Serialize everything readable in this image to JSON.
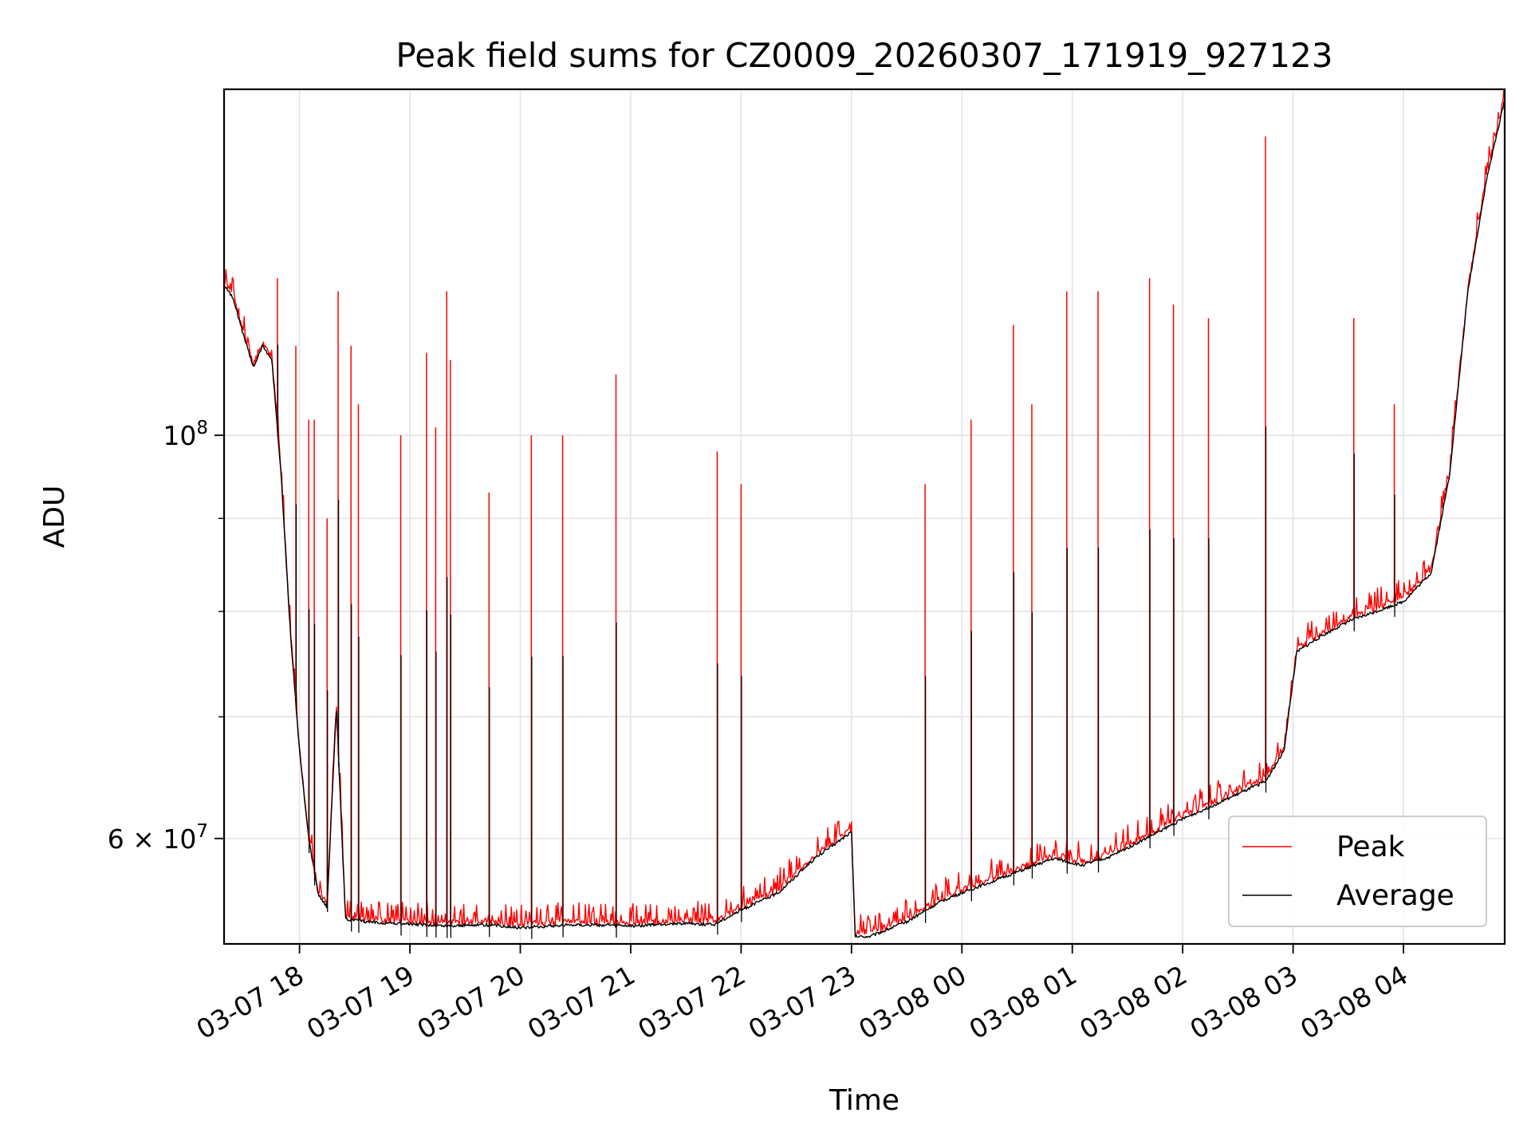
{
  "chart_data": {
    "type": "line",
    "title": "Peak field sums for CZ0009_20260307_171919_927123",
    "xlabel": "Time",
    "ylabel": "ADU",
    "yscale": "log",
    "ylim": [
      52500000,
      155000000
    ],
    "xlim": [
      "2026-03-07 17:19",
      "2026-03-08 04:55"
    ],
    "grid": true,
    "legend": {
      "placement": "lower right"
    },
    "x_ticks": [
      {
        "t": "2026-03-07 18:00",
        "label": "03-07 18"
      },
      {
        "t": "2026-03-07 19:00",
        "label": "03-07 19"
      },
      {
        "t": "2026-03-07 20:00",
        "label": "03-07 20"
      },
      {
        "t": "2026-03-07 21:00",
        "label": "03-07 21"
      },
      {
        "t": "2026-03-07 22:00",
        "label": "03-07 22"
      },
      {
        "t": "2026-03-07 23:00",
        "label": "03-07 23"
      },
      {
        "t": "2026-03-08 00:00",
        "label": "03-08 00"
      },
      {
        "t": "2026-03-08 01:00",
        "label": "03-08 01"
      },
      {
        "t": "2026-03-08 02:00",
        "label": "03-08 02"
      },
      {
        "t": "2026-03-08 03:00",
        "label": "03-08 03"
      },
      {
        "t": "2026-03-08 04:00",
        "label": "03-08 04"
      }
    ],
    "y_ticks_major": [
      {
        "v": 100000000,
        "base": "10",
        "exp": "8"
      },
      {
        "v": 60000000,
        "base": "6 × 10",
        "exp": "7"
      }
    ],
    "y_ticks_minor": [
      70000000,
      80000000,
      90000000
    ],
    "series": [
      {
        "name": "Average",
        "color": "#000000",
        "points": [
          [
            "2026-03-07 17:19",
            121000000
          ],
          [
            "2026-03-07 17:24",
            119000000
          ],
          [
            "2026-03-07 17:29",
            114000000
          ],
          [
            "2026-03-07 17:35",
            109000000
          ],
          [
            "2026-03-07 17:40",
            112000000
          ],
          [
            "2026-03-07 17:45",
            110000000
          ],
          [
            "2026-03-07 17:50",
            95000000
          ],
          [
            "2026-03-07 17:55",
            78000000
          ],
          [
            "2026-03-07 18:00",
            67000000
          ],
          [
            "2026-03-07 18:05",
            60000000
          ],
          [
            "2026-03-07 18:10",
            56000000
          ],
          [
            "2026-03-07 18:15",
            55000000
          ],
          [
            "2026-03-07 18:20",
            71000000
          ],
          [
            "2026-03-07 18:25",
            54200000
          ],
          [
            "2026-03-07 18:35",
            54000000
          ],
          [
            "2026-03-07 18:50",
            53900000
          ],
          [
            "2026-03-07 19:05",
            53800000
          ],
          [
            "2026-03-07 19:20",
            53700000
          ],
          [
            "2026-03-07 19:40",
            53800000
          ],
          [
            "2026-03-07 20:00",
            53600000
          ],
          [
            "2026-03-07 20:30",
            53800000
          ],
          [
            "2026-03-07 21:00",
            53700000
          ],
          [
            "2026-03-07 21:30",
            53900000
          ],
          [
            "2026-03-07 21:45",
            53800000
          ],
          [
            "2026-03-07 22:00",
            54800000
          ],
          [
            "2026-03-07 22:20",
            56000000
          ],
          [
            "2026-03-07 22:40",
            58500000
          ],
          [
            "2026-03-07 22:55",
            60000000
          ],
          [
            "2026-03-07 23:00",
            60500000
          ],
          [
            "2026-03-07 23:02",
            53000000
          ],
          [
            "2026-03-07 23:10",
            53000000
          ],
          [
            "2026-03-07 23:30",
            54000000
          ],
          [
            "2026-03-07 23:50",
            55500000
          ],
          [
            "2026-03-08 00:10",
            56500000
          ],
          [
            "2026-03-08 00:30",
            57500000
          ],
          [
            "2026-03-08 00:50",
            58500000
          ],
          [
            "2026-03-08 01:05",
            58000000
          ],
          [
            "2026-03-08 01:20",
            58600000
          ],
          [
            "2026-03-08 01:40",
            60000000
          ],
          [
            "2026-03-08 02:00",
            61500000
          ],
          [
            "2026-03-08 02:20",
            62800000
          ],
          [
            "2026-03-08 02:45",
            64500000
          ],
          [
            "2026-03-08 02:55",
            67000000
          ],
          [
            "2026-03-08 03:02",
            76000000
          ],
          [
            "2026-03-08 03:15",
            77500000
          ],
          [
            "2026-03-08 03:30",
            79000000
          ],
          [
            "2026-03-08 04:00",
            81000000
          ],
          [
            "2026-03-08 04:15",
            84000000
          ],
          [
            "2026-03-08 04:25",
            95000000
          ],
          [
            "2026-03-08 04:35",
            120000000
          ],
          [
            "2026-03-08 04:45",
            138000000
          ],
          [
            "2026-03-08 04:55",
            153000000
          ]
        ]
      },
      {
        "name": "Peak",
        "color": "#ff0000",
        "spikes": [
          [
            "2026-03-07 17:48",
            122000000
          ],
          [
            "2026-03-07 17:58",
            112000000
          ],
          [
            "2026-03-07 18:05",
            102000000
          ],
          [
            "2026-03-07 18:08",
            102000000
          ],
          [
            "2026-03-07 18:15",
            90000000
          ],
          [
            "2026-03-07 18:21",
            120000000
          ],
          [
            "2026-03-07 18:28",
            112000000
          ],
          [
            "2026-03-07 18:32",
            104000000
          ],
          [
            "2026-03-07 18:55",
            100000000
          ],
          [
            "2026-03-07 19:09",
            111000000
          ],
          [
            "2026-03-07 19:14",
            101000000
          ],
          [
            "2026-03-07 19:20",
            120000000
          ],
          [
            "2026-03-07 19:22",
            110000000
          ],
          [
            "2026-03-07 19:43",
            93000000
          ],
          [
            "2026-03-07 20:06",
            100000000
          ],
          [
            "2026-03-07 20:23",
            100000000
          ],
          [
            "2026-03-07 20:52",
            108000000
          ],
          [
            "2026-03-07 21:47",
            98000000
          ],
          [
            "2026-03-07 22:00",
            94000000
          ],
          [
            "2026-03-07 23:40",
            94000000
          ],
          [
            "2026-03-08 00:05",
            102000000
          ],
          [
            "2026-03-08 00:28",
            115000000
          ],
          [
            "2026-03-08 00:38",
            104000000
          ],
          [
            "2026-03-08 00:57",
            120000000
          ],
          [
            "2026-03-08 01:14",
            120000000
          ],
          [
            "2026-03-08 01:42",
            122000000
          ],
          [
            "2026-03-08 01:55",
            118000000
          ],
          [
            "2026-03-08 02:14",
            116000000
          ],
          [
            "2026-03-08 02:45",
            146000000
          ],
          [
            "2026-03-08 03:33",
            116000000
          ],
          [
            "2026-03-08 03:55",
            104000000
          ]
        ]
      }
    ]
  }
}
